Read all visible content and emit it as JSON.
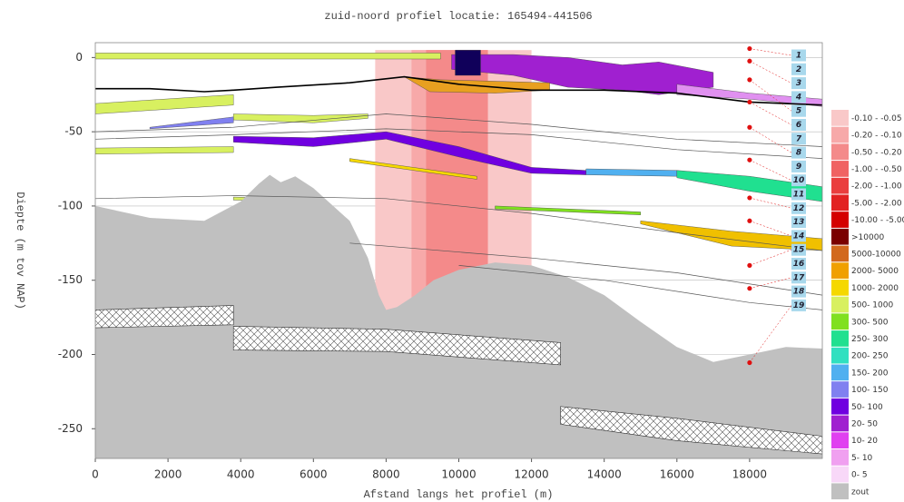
{
  "chart_data": {
    "type": "cross-section",
    "title": "zuid-noord profiel locatie: 165494-441506",
    "xlabel": "Afstand langs het profiel (m)",
    "ylabel": "Diepte (m tov NAP)",
    "xlim": [
      0,
      20000
    ],
    "ylim": [
      -270,
      10
    ],
    "xticks": [
      0,
      2000,
      4000,
      6000,
      8000,
      10000,
      12000,
      14000,
      16000,
      18000
    ],
    "yticks": [
      0,
      -50,
      -100,
      -150,
      -200,
      -250
    ],
    "grid": true,
    "drawdown": [
      {
        "x": [
          7700,
          12000
        ],
        "color": "#f9c8c8"
      },
      {
        "x": [
          8700,
          10800
        ],
        "color": "#f7a9a9"
      },
      {
        "x": [
          9100,
          10800
        ],
        "color": "#f48a8a"
      }
    ],
    "layers": [
      {
        "color": "#d8f060",
        "x": [
          0,
          9500,
          9500,
          0
        ],
        "y": [
          3,
          3,
          -1,
          -1
        ]
      },
      {
        "color": "#a020d0",
        "x": [
          9800,
          11500,
          13000,
          14500,
          15500,
          17000,
          17000,
          15500,
          14500,
          13000,
          11500,
          9800
        ],
        "y": [
          2,
          2,
          0,
          -5,
          -3,
          -10,
          -20,
          -25,
          -22,
          -20,
          -12,
          -8
        ]
      },
      {
        "color": "#10005a",
        "x": [
          9900,
          10600,
          10600,
          9900
        ],
        "y": [
          5,
          5,
          -12,
          -12
        ]
      },
      {
        "color": "#e8a020",
        "x": [
          8500,
          9500,
          11000,
          12500,
          12500,
          11000,
          9200
        ],
        "y": [
          -13,
          -15,
          -16,
          -17,
          -22,
          -24,
          -23
        ]
      },
      {
        "color": "#e090f0",
        "x": [
          16000,
          18000,
          20000,
          20000,
          18000,
          16000
        ],
        "y": [
          -18,
          -24,
          -28,
          -33,
          -28,
          -25
        ]
      },
      {
        "color": "#d8f060",
        "x": [
          0,
          3800,
          3800,
          0
        ],
        "y": [
          -31,
          -25,
          -32,
          -38
        ]
      },
      {
        "color": "#d8f060",
        "x": [
          3800,
          6000,
          7500,
          7500,
          6000,
          3800
        ],
        "y": [
          -38,
          -39,
          -38,
          -41,
          -44,
          -42
        ]
      },
      {
        "color": "#8080f0",
        "x": [
          1500,
          3800,
          3800,
          1500
        ],
        "y": [
          -47,
          -40,
          -44,
          -48
        ]
      },
      {
        "color": "#7000e0",
        "x": [
          3800,
          6000,
          8000,
          10000,
          12000,
          13500,
          13500,
          12000,
          10000,
          8000,
          6000,
          3800
        ],
        "y": [
          -53,
          -54,
          -50,
          -60,
          -74,
          -76,
          -79,
          -78,
          -67,
          -55,
          -60,
          -57
        ]
      },
      {
        "color": "#50b0f0",
        "x": [
          13500,
          16000,
          16000,
          13500
        ],
        "y": [
          -75,
          -76,
          -80,
          -79
        ]
      },
      {
        "color": "#20e090",
        "x": [
          16000,
          18000,
          20000,
          20000,
          18000,
          16000
        ],
        "y": [
          -76,
          -80,
          -87,
          -97,
          -90,
          -81
        ]
      },
      {
        "color": "#d8f060",
        "x": [
          0,
          3800,
          3800,
          0
        ],
        "y": [
          -61,
          -60,
          -64,
          -65
        ]
      },
      {
        "color": "#f5d800",
        "x": [
          7000,
          10500,
          10500,
          7000
        ],
        "y": [
          -68,
          -80,
          -82,
          -70
        ]
      },
      {
        "color": "#f0c000",
        "x": [
          15000,
          17500,
          20000,
          20000,
          17500,
          15000
        ],
        "y": [
          -110,
          -117,
          -122,
          -130,
          -127,
          -112
        ]
      },
      {
        "color": "#80e020",
        "x": [
          11000,
          15000,
          15000,
          11000
        ],
        "y": [
          -100,
          -104,
          -106,
          -102
        ]
      },
      {
        "color": "#d8f060",
        "x": [
          3800,
          6000,
          6000,
          3800
        ],
        "y": [
          -94,
          -95,
          -97,
          -96
        ]
      }
    ],
    "zout": {
      "color": "#c0c0c0",
      "x": [
        0,
        1500,
        3000,
        4000,
        4500,
        4800,
        5100,
        5500,
        6000,
        7000,
        7500,
        7800,
        8000,
        8300,
        8800,
        9300,
        10000,
        11000,
        12000,
        13000,
        14000,
        15000,
        16000,
        17000,
        18000,
        19000,
        20000
      ],
      "y": [
        -100,
        -108,
        -110,
        -97,
        -85,
        -79,
        -84,
        -80,
        -88,
        -110,
        -135,
        -160,
        -170,
        -168,
        -160,
        -150,
        -143,
        -138,
        -140,
        -148,
        -160,
        -178,
        -195,
        -205,
        -200,
        -195,
        -196
      ]
    },
    "hatched": [
      {
        "x": [
          0,
          3800,
          3800,
          0
        ],
        "y": [
          -170,
          -167,
          -180,
          -182
        ]
      },
      {
        "x": [
          3800,
          8000,
          12800,
          12800,
          8000,
          3800
        ],
        "y": [
          -181,
          -183,
          -192,
          -207,
          -198,
          -197
        ]
      },
      {
        "x": [
          12800,
          16000,
          20000,
          20000,
          16000,
          12800
        ],
        "y": [
          -235,
          -243,
          -255,
          -267,
          -258,
          -247
        ]
      }
    ],
    "lines": [
      {
        "color": "#000000",
        "width": 1.6,
        "x": [
          0,
          1500,
          3000,
          3800,
          5000,
          7000,
          8500,
          10000,
          12000,
          14000,
          16000,
          18000,
          20000
        ],
        "y": [
          -21,
          -21,
          -23,
          -22,
          -20,
          -17,
          -13,
          -18,
          -22,
          -22,
          -24,
          -30,
          -32
        ]
      },
      {
        "color": "#555555",
        "width": 0.7,
        "x": [
          0,
          3800,
          8000,
          12000,
          16000,
          20000
        ],
        "y": [
          -50,
          -47,
          -38,
          -45,
          -55,
          -60
        ]
      },
      {
        "color": "#555555",
        "width": 0.7,
        "x": [
          0,
          3800,
          8000,
          12000,
          16000,
          20000
        ],
        "y": [
          -55,
          -52,
          -48,
          -52,
          -62,
          -68
        ]
      },
      {
        "color": "#555555",
        "width": 0.7,
        "x": [
          0,
          3800,
          8000,
          12000,
          16000,
          20000
        ],
        "y": [
          -95,
          -93,
          -95,
          -105,
          -118,
          -130
        ]
      },
      {
        "color": "#555555",
        "width": 0.7,
        "x": [
          7000,
          12000,
          16000,
          20000
        ],
        "y": [
          -125,
          -135,
          -145,
          -160
        ]
      },
      {
        "color": "#555555",
        "width": 0.7,
        "x": [
          10000,
          14000,
          18000,
          20000
        ],
        "y": [
          -140,
          -150,
          -165,
          -170
        ]
      }
    ],
    "filters": {
      "color": "#e01010",
      "x": [
        18000,
        18000,
        18000,
        18000,
        18000,
        18000,
        18000,
        18000,
        18000,
        18000,
        18000
      ],
      "y": [
        6,
        -2.4,
        -15,
        -30,
        -47,
        -69,
        -94.5,
        -110,
        -140,
        -155.5,
        -205.5
      ]
    },
    "layer_labels": [
      "1",
      "2",
      "3",
      "4",
      "5",
      "6",
      "7",
      "8",
      "9",
      "10",
      "11",
      "12",
      "13",
      "14",
      "15",
      "16",
      "17",
      "18",
      "19"
    ],
    "legend": [
      {
        "name": "-0.10 - -0.05",
        "color": "#f9c8c8"
      },
      {
        "name": "-0.20 - -0.10",
        "color": "#f7a9a9"
      },
      {
        "name": "-0.50 - -0.20",
        "color": "#f48a8a"
      },
      {
        "name": "-1.00 - -0.50",
        "color": "#f06262"
      },
      {
        "name": "-2.00 - -1.00",
        "color": "#ea3e3e"
      },
      {
        "name": "-5.00 - -2.00",
        "color": "#e22222"
      },
      {
        "name": "-10.00 - -5.00",
        "color": "#d40000"
      },
      {
        "name": ">10000",
        "color": "#7a0000"
      },
      {
        "name": "5000-10000",
        "color": "#d2691e"
      },
      {
        "name": "2000- 5000",
        "color": "#f0a000"
      },
      {
        "name": "1000- 2000",
        "color": "#f5d800"
      },
      {
        "name": "500- 1000",
        "color": "#d8f060"
      },
      {
        "name": "300- 500",
        "color": "#80e020"
      },
      {
        "name": "250- 300",
        "color": "#20e090"
      },
      {
        "name": "200- 250",
        "color": "#30e0c0"
      },
      {
        "name": "150- 200",
        "color": "#50b0f0"
      },
      {
        "name": "100- 150",
        "color": "#8080f0"
      },
      {
        "name": "50- 100",
        "color": "#7000e0"
      },
      {
        "name": "20- 50",
        "color": "#a020d0"
      },
      {
        "name": "10- 20",
        "color": "#e040f0"
      },
      {
        "name": "5- 10",
        "color": "#f0a0f0"
      },
      {
        "name": "0- 5",
        "color": "#f8d8f8"
      },
      {
        "name": "zout",
        "color": "#c0c0c0"
      }
    ]
  }
}
